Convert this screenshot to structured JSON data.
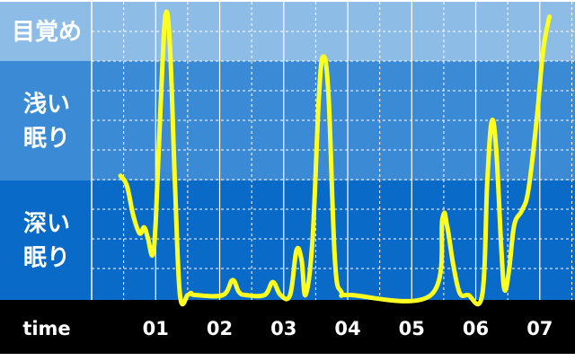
{
  "chart_data": {
    "type": "line",
    "title": "",
    "xlabel": "time",
    "ylabel": "",
    "x_ticks": [
      "01",
      "02",
      "03",
      "04",
      "05",
      "06",
      "07"
    ],
    "y_categories": [
      {
        "id": "awake",
        "lines": [
          "目覚め"
        ],
        "color": "#8dbde6"
      },
      {
        "id": "light",
        "lines": [
          "浅い",
          "眠り"
        ],
        "color": "#3a8ad6"
      },
      {
        "id": "deep",
        "lines": [
          "深い",
          "眠り"
        ],
        "color": "#0a6ac8"
      }
    ],
    "ylim": [
      0,
      3
    ],
    "xlim": [
      0.0,
      7.55
    ],
    "grid": true,
    "series": [
      {
        "color": "#ffff22",
        "points": [
          [
            0.45,
            1.25
          ],
          [
            0.55,
            1.15
          ],
          [
            0.65,
            0.85
          ],
          [
            0.75,
            0.67
          ],
          [
            0.82,
            0.73
          ],
          [
            0.88,
            0.62
          ],
          [
            0.95,
            0.45
          ],
          [
            1.0,
            0.78
          ],
          [
            1.08,
            2.0
          ],
          [
            1.15,
            2.85
          ],
          [
            1.22,
            2.6
          ],
          [
            1.3,
            1.2
          ],
          [
            1.38,
            0.05
          ],
          [
            1.5,
            0.05
          ],
          [
            1.55,
            0.07
          ],
          [
            1.62,
            0.05
          ],
          [
            2.05,
            0.05
          ],
          [
            2.2,
            0.2
          ],
          [
            2.3,
            0.08
          ],
          [
            2.4,
            0.05
          ],
          [
            2.7,
            0.05
          ],
          [
            2.83,
            0.18
          ],
          [
            2.95,
            0.05
          ],
          [
            3.1,
            0.05
          ],
          [
            3.2,
            0.5
          ],
          [
            3.28,
            0.4
          ],
          [
            3.34,
            0.05
          ],
          [
            3.45,
            0.6
          ],
          [
            3.55,
            2.05
          ],
          [
            3.62,
            2.45
          ],
          [
            3.7,
            2.05
          ],
          [
            3.8,
            0.4
          ],
          [
            3.9,
            0.08
          ],
          [
            4.05,
            0.05
          ],
          [
            5.3,
            0.05
          ],
          [
            5.48,
            0.82
          ],
          [
            5.55,
            0.75
          ],
          [
            5.65,
            0.35
          ],
          [
            5.75,
            0.07
          ],
          [
            5.88,
            0.05
          ],
          [
            6.1,
            0.05
          ],
          [
            6.18,
            1.2
          ],
          [
            6.25,
            1.8
          ],
          [
            6.32,
            1.5
          ],
          [
            6.4,
            0.5
          ],
          [
            6.45,
            0.1
          ],
          [
            6.52,
            0.3
          ],
          [
            6.6,
            0.75
          ],
          [
            6.72,
            0.9
          ],
          [
            6.82,
            1.1
          ],
          [
            6.95,
            1.8
          ],
          [
            7.05,
            2.5
          ],
          [
            7.15,
            2.85
          ]
        ]
      }
    ]
  }
}
